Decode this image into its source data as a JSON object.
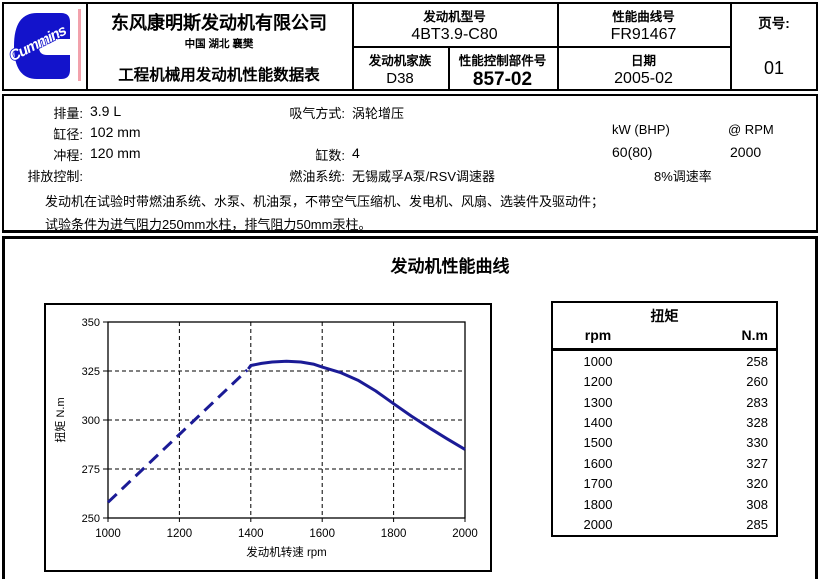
{
  "header": {
    "brand": "Cummins",
    "company_name": "东风康明斯发动机有限公司",
    "company_location": "中国 湖北 襄樊",
    "sheet_title": "工程机械用发动机性能数据表",
    "engine_model_label": "发动机型号",
    "engine_model_value": "4BT3.9-C80",
    "curve_no_label": "性能曲线号",
    "curve_no_value": "FR91467",
    "page_label": "页号:",
    "page_value": "01",
    "family_label": "发动机家族",
    "family_value": "D38",
    "control_part_label": "性能控制部件号",
    "control_part_value": "857-02",
    "date_label": "日期",
    "date_value": "2005-02"
  },
  "specs": {
    "displacement_label": "排量:",
    "displacement_value": "3.9 L",
    "bore_label": "缸径:",
    "bore_value": "102 mm",
    "stroke_label": "冲程:",
    "stroke_value": "120 mm",
    "emission_label": "排放控制:",
    "aspiration_label": "吸气方式:",
    "aspiration_value": "涡轮增压",
    "cylinders_label": "缸数:",
    "cylinders_value": "4",
    "fuel_system_label": "燃油系统:",
    "fuel_system_value": "无锡威孚A泵/RSV调速器",
    "power_header": "kW (BHP)",
    "rpm_header": "@ RPM",
    "power_value": "60(80)",
    "rpm_value": "2000",
    "governor_note": "8%调速率"
  },
  "notes": {
    "line1": "发动机在试验时带燃油系统、水泵、机油泵，不带空气压缩机、发电机、风扇、选装件及驱动件；",
    "line2": "试验条件为进气阻力250mm水柱，排气阻力50mm汞柱。"
  },
  "section_title": "发动机性能曲线",
  "chart_data": {
    "type": "line",
    "title": "发动机性能曲线",
    "xlabel": "发动机转速 rpm",
    "ylabel": "扭矩 N.m",
    "xlim": [
      1000,
      2000
    ],
    "ylim": [
      250,
      350
    ],
    "xticks": [
      1000,
      1200,
      1400,
      1600,
      1800,
      2000
    ],
    "yticks": [
      250,
      275,
      300,
      325,
      350
    ],
    "grid": true,
    "line_color": "#1b1b96",
    "series": [
      {
        "name": "torque-curve-dashed",
        "style": "dashed",
        "points": [
          [
            1000,
            258
          ],
          [
            1390,
            325.5
          ]
        ]
      },
      {
        "name": "torque-curve-solid",
        "style": "solid",
        "points": [
          [
            1393,
            326
          ],
          [
            1400,
            327.8
          ],
          [
            1430,
            328.9
          ],
          [
            1460,
            329.6
          ],
          [
            1500,
            330
          ],
          [
            1540,
            329.6
          ],
          [
            1575,
            328.5
          ],
          [
            1600,
            327
          ],
          [
            1650,
            324.3
          ],
          [
            1700,
            320.3
          ],
          [
            1750,
            314.8
          ],
          [
            1800,
            308.3
          ],
          [
            1850,
            302
          ],
          [
            1900,
            296
          ],
          [
            1950,
            290.4
          ],
          [
            2000,
            285
          ]
        ]
      }
    ]
  },
  "table": {
    "title": "扭矩",
    "col1": "rpm",
    "col2": "N.m",
    "rows": [
      [
        "1000",
        "258"
      ],
      [
        "1200",
        "260"
      ],
      [
        "1300",
        "283"
      ],
      [
        "1400",
        "328"
      ],
      [
        "1500",
        "330"
      ],
      [
        "1600",
        "327"
      ],
      [
        "1700",
        "320"
      ],
      [
        "1800",
        "308"
      ],
      [
        "2000",
        "285"
      ]
    ]
  },
  "colors": {
    "logo_blue": "#1313cb",
    "logo_accent_pink": "#f2a2ac",
    "curve_navy": "#1b1b96"
  }
}
